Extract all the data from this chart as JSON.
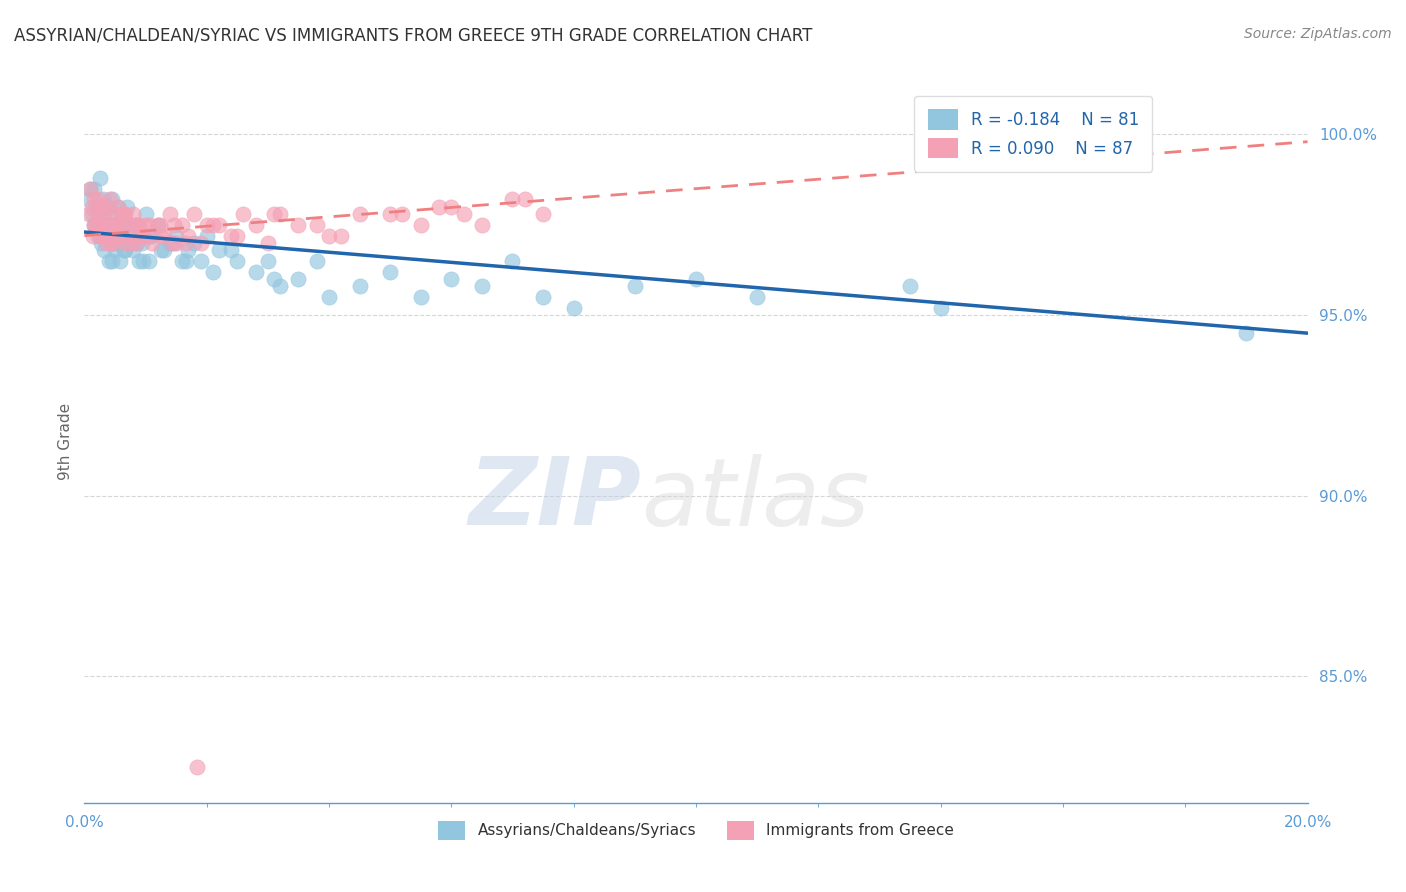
{
  "title": "ASSYRIAN/CHALDEAN/SYRIAC VS IMMIGRANTS FROM GREECE 9TH GRADE CORRELATION CHART",
  "source": "Source: ZipAtlas.com",
  "ylabel": "9th Grade",
  "xlim": [
    0.0,
    20.0
  ],
  "ylim": [
    81.5,
    101.5
  ],
  "legend_R_blue": "R = -0.184",
  "legend_N_blue": "N = 81",
  "legend_R_pink": "R = 0.090",
  "legend_N_pink": "N = 87",
  "blue_color": "#92c5de",
  "pink_color": "#f4a0b5",
  "trend_blue_color": "#2166ac",
  "trend_pink_color": "#f08080",
  "axis_color": "#5b9bd5",
  "grid_color": "#cccccc",
  "blue_x": [
    0.08,
    0.12,
    0.15,
    0.18,
    0.2,
    0.22,
    0.25,
    0.28,
    0.3,
    0.32,
    0.35,
    0.38,
    0.4,
    0.42,
    0.45,
    0.48,
    0.5,
    0.52,
    0.55,
    0.58,
    0.6,
    0.62,
    0.65,
    0.68,
    0.7,
    0.75,
    0.8,
    0.85,
    0.9,
    0.95,
    1.0,
    1.05,
    1.1,
    1.2,
    1.3,
    1.4,
    1.5,
    1.6,
    1.7,
    1.8,
    1.9,
    2.0,
    2.2,
    2.5,
    2.8,
    3.0,
    3.2,
    3.5,
    3.8,
    4.0,
    4.5,
    5.0,
    5.5,
    6.0,
    6.5,
    7.0,
    7.5,
    8.0,
    9.0,
    10.0,
    11.0,
    13.5,
    14.0,
    0.1,
    0.16,
    0.26,
    0.36,
    0.46,
    0.56,
    0.66,
    0.76,
    0.86,
    0.96,
    1.06,
    1.26,
    1.46,
    1.66,
    2.1,
    2.4,
    3.1,
    19.0
  ],
  "blue_y": [
    98.2,
    97.8,
    98.5,
    97.5,
    98.0,
    97.2,
    98.8,
    97.0,
    98.2,
    96.8,
    97.5,
    98.0,
    96.5,
    97.8,
    98.2,
    97.0,
    96.8,
    97.5,
    98.0,
    96.5,
    97.8,
    97.2,
    96.8,
    97.5,
    98.0,
    97.2,
    96.8,
    97.5,
    96.5,
    97.0,
    97.8,
    96.5,
    97.2,
    97.5,
    96.8,
    97.0,
    97.2,
    96.5,
    96.8,
    97.0,
    96.5,
    97.2,
    96.8,
    96.5,
    96.2,
    96.5,
    95.8,
    96.0,
    96.5,
    95.5,
    95.8,
    96.2,
    95.5,
    96.0,
    95.8,
    96.5,
    95.5,
    95.2,
    95.8,
    96.0,
    95.5,
    95.8,
    95.2,
    98.5,
    97.5,
    97.8,
    97.2,
    96.5,
    97.0,
    96.8,
    97.5,
    97.0,
    96.5,
    97.2,
    96.8,
    97.0,
    96.5,
    96.2,
    96.8,
    96.0,
    94.5
  ],
  "pink_x": [
    0.08,
    0.1,
    0.12,
    0.15,
    0.18,
    0.2,
    0.22,
    0.25,
    0.28,
    0.3,
    0.32,
    0.35,
    0.38,
    0.4,
    0.42,
    0.45,
    0.48,
    0.5,
    0.52,
    0.55,
    0.58,
    0.6,
    0.62,
    0.65,
    0.7,
    0.75,
    0.8,
    0.85,
    0.9,
    0.95,
    1.0,
    1.1,
    1.2,
    1.3,
    1.4,
    1.5,
    1.6,
    1.7,
    1.8,
    1.9,
    2.0,
    2.2,
    2.4,
    2.6,
    2.8,
    3.0,
    3.2,
    3.5,
    4.0,
    4.5,
    5.0,
    5.5,
    6.0,
    6.5,
    7.0,
    7.5,
    0.16,
    0.26,
    0.36,
    0.46,
    0.56,
    0.66,
    0.76,
    0.86,
    0.96,
    1.06,
    1.26,
    1.46,
    1.66,
    2.1,
    2.5,
    3.1,
    3.8,
    4.2,
    5.2,
    5.8,
    6.2,
    7.2,
    0.14,
    0.24,
    0.44,
    0.64,
    0.84,
    1.04,
    1.24,
    1.44,
    1.84
  ],
  "pink_y": [
    97.8,
    98.5,
    98.0,
    98.2,
    97.5,
    97.8,
    98.2,
    97.5,
    98.0,
    97.2,
    97.8,
    98.0,
    97.2,
    97.5,
    98.2,
    97.0,
    97.8,
    97.2,
    97.5,
    98.0,
    97.2,
    97.5,
    97.8,
    97.0,
    97.5,
    97.2,
    97.8,
    97.0,
    97.5,
    97.2,
    97.5,
    97.0,
    97.5,
    97.2,
    97.8,
    97.0,
    97.5,
    97.2,
    97.8,
    97.0,
    97.5,
    97.5,
    97.2,
    97.8,
    97.5,
    97.0,
    97.8,
    97.5,
    97.2,
    97.8,
    97.8,
    97.5,
    98.0,
    97.5,
    98.2,
    97.8,
    97.5,
    97.2,
    97.0,
    97.5,
    97.2,
    97.8,
    97.0,
    97.5,
    97.2,
    97.5,
    97.2,
    97.5,
    97.0,
    97.5,
    97.2,
    97.8,
    97.5,
    97.2,
    97.8,
    98.0,
    97.8,
    98.2,
    97.2,
    97.5,
    97.0,
    97.8,
    97.5,
    97.2,
    97.5,
    97.0,
    82.5
  ],
  "blue_trend_x0": 0.0,
  "blue_trend_y0": 97.3,
  "blue_trend_x1": 20.0,
  "blue_trend_y1": 94.5,
  "pink_trend_x0": 0.0,
  "pink_trend_y0": 97.2,
  "pink_trend_x1": 20.0,
  "pink_trend_y1": 99.8
}
